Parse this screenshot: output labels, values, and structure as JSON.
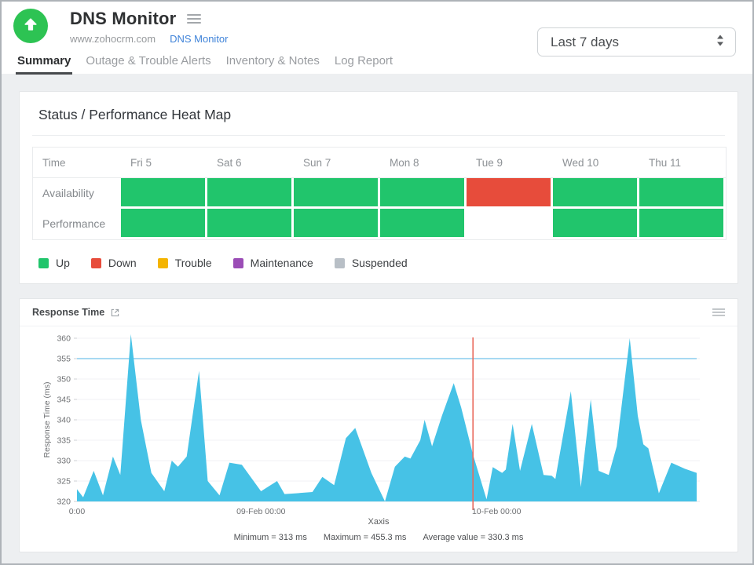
{
  "header": {
    "title": "DNS Monitor",
    "host": "www.zohocrm.com",
    "monitor_type_link": "DNS Monitor",
    "range_selector": {
      "value": "Last 7 days"
    }
  },
  "tabs": [
    {
      "label": "Summary",
      "active": true
    },
    {
      "label": "Outage & Trouble Alerts",
      "active": false
    },
    {
      "label": "Inventory & Notes",
      "active": false
    },
    {
      "label": "Log Report",
      "active": false
    }
  ],
  "heatmap": {
    "title": "Status / Performance Heat Map",
    "time_header": "Time",
    "day_columns": [
      "Fri 5",
      "Sat 6",
      "Sun 7",
      "Mon 8",
      "Tue 9",
      "Wed 10",
      "Thu 11"
    ],
    "rows": [
      {
        "label": "Availability",
        "cells": [
          "up",
          "up",
          "up",
          "up",
          "down",
          "up",
          "up"
        ]
      },
      {
        "label": "Performance",
        "cells": [
          "up",
          "up",
          "up",
          "up",
          "none",
          "up",
          "up"
        ]
      }
    ],
    "status_colors": {
      "up": "#21c56c",
      "down": "#e74c3b",
      "trouble": "#f4b400",
      "maintenance": "#9b4db6",
      "suspended": "#b8bfc6",
      "none": "#ffffff"
    },
    "legend": [
      {
        "label": "Up",
        "color": "#21c56c"
      },
      {
        "label": "Down",
        "color": "#e74c3b"
      },
      {
        "label": "Trouble",
        "color": "#f4b400"
      },
      {
        "label": "Maintenance",
        "color": "#9b4db6"
      },
      {
        "label": "Suspended",
        "color": "#b8bfc6"
      }
    ]
  },
  "chart_card": {
    "title": "Response Time",
    "stats": {
      "minimum": "Minimum = 313 ms",
      "maximum": "Maximum = 455.3 ms",
      "average": "Average value = 330.3 ms"
    }
  },
  "chart_data": {
    "type": "area",
    "title": "Response Time",
    "ylabel": "Response Time (ms)",
    "xlabel": "Xaxis",
    "ylim": [
      320,
      360
    ],
    "yticks": [
      320,
      325,
      330,
      335,
      340,
      345,
      350,
      355,
      360
    ],
    "xticks": [
      {
        "pos": 0.0,
        "label": "0:00"
      },
      {
        "pos": 0.297,
        "label": "09-Feb 00:00"
      },
      {
        "pos": 0.677,
        "label": "10-Feb 00:00"
      }
    ],
    "grid": true,
    "legend_position": "none",
    "threshold_value": 355,
    "threshold_color": "#a7d9f2",
    "marker_line_pos": 0.639,
    "marker_color": "#e96a5c",
    "area_color": "#46c2e6",
    "min_ms": 313,
    "max_ms": 455.3,
    "avg_ms": 330.3,
    "series": [
      {
        "name": "Response Time (ms)",
        "points": [
          [
            0,
            323
          ],
          [
            0.01,
            321
          ],
          [
            0.027,
            327.5
          ],
          [
            0.042,
            321.5
          ],
          [
            0.058,
            331
          ],
          [
            0.07,
            326.5
          ],
          [
            0.087,
            361
          ],
          [
            0.103,
            340
          ],
          [
            0.12,
            327
          ],
          [
            0.141,
            322.5
          ],
          [
            0.153,
            330
          ],
          [
            0.163,
            328.5
          ],
          [
            0.177,
            331
          ],
          [
            0.197,
            352
          ],
          [
            0.211,
            325
          ],
          [
            0.23,
            321.5
          ],
          [
            0.246,
            329.5
          ],
          [
            0.266,
            329
          ],
          [
            0.297,
            322.5
          ],
          [
            0.323,
            325
          ],
          [
            0.335,
            321.8
          ],
          [
            0.354,
            322
          ],
          [
            0.38,
            322.3
          ],
          [
            0.396,
            326
          ],
          [
            0.415,
            324
          ],
          [
            0.434,
            335.5
          ],
          [
            0.449,
            338
          ],
          [
            0.475,
            327
          ],
          [
            0.497,
            320
          ],
          [
            0.513,
            328.5
          ],
          [
            0.529,
            331
          ],
          [
            0.538,
            330.5
          ],
          [
            0.554,
            335
          ],
          [
            0.561,
            340
          ],
          [
            0.573,
            333.5
          ],
          [
            0.589,
            341
          ],
          [
            0.608,
            349
          ],
          [
            0.62,
            343
          ],
          [
            0.639,
            331.5
          ],
          [
            0.661,
            320.5
          ],
          [
            0.671,
            328.4
          ],
          [
            0.686,
            327
          ],
          [
            0.692,
            327.8
          ],
          [
            0.703,
            339
          ],
          [
            0.715,
            327.5
          ],
          [
            0.734,
            339
          ],
          [
            0.753,
            326.5
          ],
          [
            0.766,
            326.3
          ],
          [
            0.772,
            325.5
          ],
          [
            0.797,
            347
          ],
          [
            0.813,
            323.5
          ],
          [
            0.829,
            345
          ],
          [
            0.842,
            327.5
          ],
          [
            0.858,
            326.5
          ],
          [
            0.871,
            333.5
          ],
          [
            0.892,
            360
          ],
          [
            0.905,
            341
          ],
          [
            0.914,
            334
          ],
          [
            0.922,
            333
          ],
          [
            0.939,
            322
          ],
          [
            0.959,
            329.5
          ],
          [
            0.981,
            328
          ],
          [
            1,
            327
          ]
        ]
      }
    ]
  }
}
